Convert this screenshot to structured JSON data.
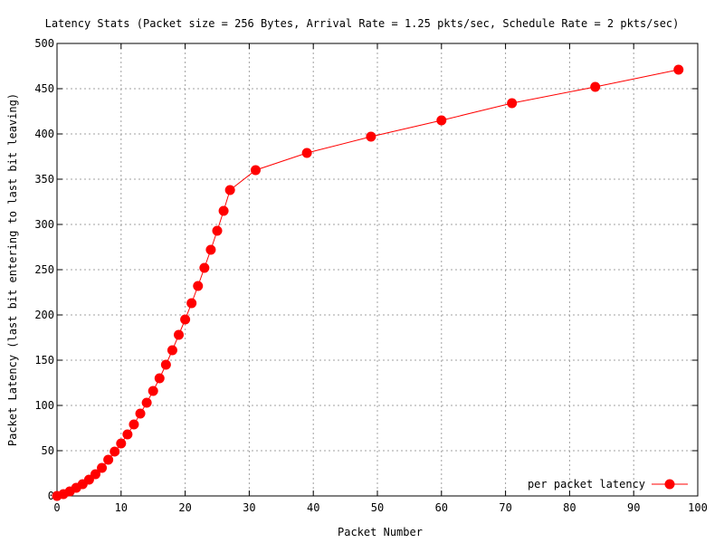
{
  "chart_data": {
    "type": "line",
    "title": "Latency Stats (Packet size = 256 Bytes, Arrival Rate = 1.25 pkts/sec, Schedule Rate = 2 pkts/sec)",
    "xlabel": "Packet Number",
    "ylabel": "Packet Latency (last bit entering to last bit leaving)",
    "xlim": [
      0,
      100
    ],
    "ylim": [
      0,
      500
    ],
    "xticks": [
      0,
      10,
      20,
      30,
      40,
      50,
      60,
      70,
      80,
      90,
      100
    ],
    "yticks": [
      0,
      50,
      100,
      150,
      200,
      250,
      300,
      350,
      400,
      450,
      500
    ],
    "xtick_labels": [
      "0",
      "10",
      "20",
      "30",
      "40",
      "50",
      "60",
      "70",
      "80",
      "90",
      "100"
    ],
    "ytick_labels": [
      "0",
      "50",
      "100",
      "150",
      "200",
      "250",
      "300",
      "350",
      "400",
      "450",
      "500"
    ],
    "grid": true,
    "legend_position": "bottom-right",
    "color": "#ff0000",
    "series": [
      {
        "name": "per packet latency",
        "x": [
          0,
          1,
          2,
          3,
          4,
          5,
          6,
          7,
          8,
          9,
          10,
          11,
          12,
          13,
          14,
          15,
          16,
          17,
          18,
          19,
          20,
          21,
          22,
          23,
          24,
          25,
          26,
          27,
          31,
          39,
          49,
          60,
          71,
          84,
          97
        ],
        "y": [
          0,
          2,
          5,
          9,
          13,
          18,
          24,
          31,
          40,
          49,
          58,
          68,
          79,
          91,
          103,
          116,
          130,
          145,
          161,
          178,
          195,
          213,
          232,
          252,
          272,
          293,
          315,
          338,
          360,
          379,
          397,
          415,
          434,
          452,
          471
        ]
      }
    ]
  }
}
